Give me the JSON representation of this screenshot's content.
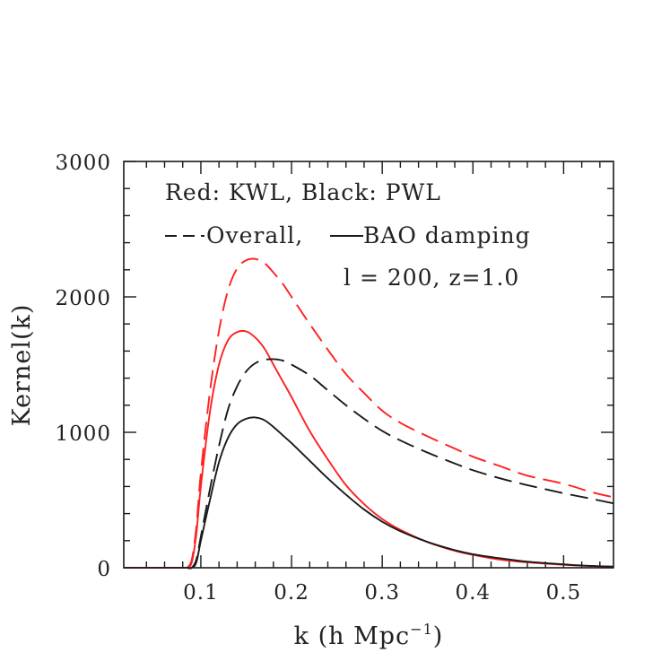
{
  "chart_data": {
    "type": "line",
    "xlabel": "k (h Mpc",
    "xlabel_exp": "−1",
    "xlabel_close": ")",
    "ylabel": "Kernel(k)",
    "xlim": [
      0.015,
      0.555
    ],
    "ylim": [
      0,
      3000
    ],
    "x_ticks": [
      0.1,
      0.2,
      0.3,
      0.4,
      0.5
    ],
    "x_tick_labels": [
      "0.1",
      "0.2",
      "0.3",
      "0.4",
      "0.5"
    ],
    "y_ticks": [
      0,
      1000,
      2000,
      3000
    ],
    "y_tick_labels": [
      "0",
      "1000",
      "2000",
      "3000"
    ],
    "grid": false,
    "annotations": [
      "Red: KWL, Black: PWL",
      "Overall,",
      "BAO damping",
      "l = 200, z=1.0"
    ],
    "colors": {
      "red": "#ff2020",
      "black": "#1a1a1a"
    },
    "series": [
      {
        "color": "red",
        "style": "dashed",
        "x": [
          0.085,
          0.09,
          0.095,
          0.1,
          0.11,
          0.12,
          0.13,
          0.14,
          0.15,
          0.16,
          0.17,
          0.18,
          0.19,
          0.2,
          0.22,
          0.24,
          0.26,
          0.28,
          0.3,
          0.32,
          0.35,
          0.38,
          0.4,
          0.43,
          0.46,
          0.5,
          0.53,
          0.555
        ],
        "y": [
          0,
          60,
          300,
          700,
          1300,
          1750,
          2050,
          2210,
          2270,
          2280,
          2250,
          2180,
          2100,
          2000,
          1800,
          1610,
          1430,
          1290,
          1160,
          1070,
          970,
          880,
          820,
          750,
          680,
          620,
          560,
          520
        ]
      },
      {
        "color": "red",
        "style": "solid",
        "x": [
          0.085,
          0.09,
          0.095,
          0.1,
          0.11,
          0.12,
          0.13,
          0.14,
          0.15,
          0.16,
          0.17,
          0.18,
          0.19,
          0.2,
          0.22,
          0.24,
          0.26,
          0.28,
          0.3,
          0.32,
          0.35,
          0.38,
          0.4,
          0.43,
          0.46,
          0.5,
          0.53,
          0.555
        ],
        "y": [
          0,
          40,
          250,
          600,
          1150,
          1500,
          1680,
          1740,
          1745,
          1700,
          1620,
          1500,
          1380,
          1260,
          1010,
          800,
          610,
          470,
          360,
          280,
          190,
          125,
          95,
          60,
          40,
          22,
          12,
          8
        ]
      },
      {
        "color": "black",
        "style": "dashed",
        "x": [
          0.085,
          0.09,
          0.095,
          0.1,
          0.11,
          0.12,
          0.13,
          0.14,
          0.15,
          0.16,
          0.17,
          0.18,
          0.19,
          0.2,
          0.22,
          0.24,
          0.26,
          0.28,
          0.3,
          0.32,
          0.35,
          0.38,
          0.4,
          0.43,
          0.46,
          0.5,
          0.53,
          0.555
        ],
        "y": [
          0,
          0,
          60,
          230,
          580,
          900,
          1170,
          1340,
          1450,
          1510,
          1535,
          1540,
          1530,
          1500,
          1420,
          1310,
          1200,
          1100,
          1010,
          940,
          850,
          770,
          720,
          660,
          610,
          550,
          510,
          475
        ]
      },
      {
        "color": "black",
        "style": "solid",
        "x": [
          0.085,
          0.09,
          0.095,
          0.1,
          0.11,
          0.12,
          0.13,
          0.14,
          0.15,
          0.16,
          0.17,
          0.18,
          0.19,
          0.2,
          0.22,
          0.24,
          0.26,
          0.28,
          0.3,
          0.32,
          0.35,
          0.38,
          0.4,
          0.43,
          0.46,
          0.5,
          0.53,
          0.555
        ],
        "y": [
          0,
          0,
          40,
          200,
          500,
          780,
          960,
          1060,
          1100,
          1110,
          1090,
          1040,
          980,
          920,
          790,
          660,
          540,
          430,
          340,
          270,
          190,
          130,
          100,
          70,
          45,
          25,
          14,
          8
        ]
      }
    ]
  }
}
